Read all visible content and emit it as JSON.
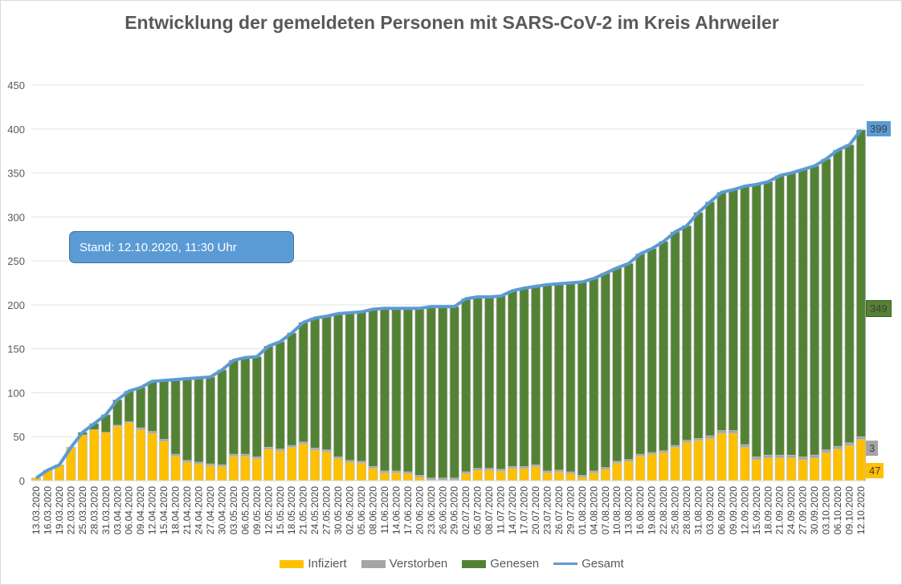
{
  "chart_data": {
    "type": "bar",
    "stacked": true,
    "title": "Entwicklung der gemeldeten Personen mit SARS-CoV-2 im Kreis Ahrweiler",
    "annotation": "Stand: 12.10.2020, 11:30 Uhr",
    "ylim": [
      0,
      450
    ],
    "yticks": [
      0,
      50,
      100,
      150,
      200,
      250,
      300,
      350,
      400,
      450
    ],
    "grid": true,
    "legend_position": "bottom",
    "categories": [
      "13.03.2020",
      "16.03.2020",
      "19.03.2020",
      "22.03.2020",
      "25.03.2020",
      "28.03.2020",
      "31.03.2020",
      "03.04.2020",
      "06.04.2020",
      "09.04.2020",
      "12.04.2020",
      "15.04.2020",
      "18.04.2020",
      "21.04.2020",
      "24.04.2020",
      "27.04.2020",
      "30.04.2020",
      "03.05.2020",
      "06.05.2020",
      "09.05.2020",
      "12.05.2020",
      "15.05.2020",
      "18.05.2020",
      "21.05.2020",
      "24.05.2020",
      "27.05.2020",
      "30.05.2020",
      "02.06.2020",
      "05.06.2020",
      "08.06.2020",
      "11.06.2020",
      "14.06.2020",
      "17.06.2020",
      "20.06.2020",
      "23.06.2020",
      "26.06.2020",
      "29.06.2020",
      "02.07.2020",
      "05.07.2020",
      "08.07.2020",
      "11.07.2020",
      "14.07.2020",
      "17.07.2020",
      "20.07.2020",
      "23.07.2020",
      "26.07.2020",
      "29.07.2020",
      "01.08.2020",
      "04.08.2020",
      "07.08.2020",
      "10.08.2020",
      "13.08.2020",
      "16.08.2020",
      "19.08.2020",
      "22.08.2020",
      "25.08.2020",
      "28.08.2020",
      "31.08.2020",
      "03.09.2020",
      "06.09.2020",
      "09.09.2020",
      "12.09.2020",
      "15.09.2020",
      "18.09.2020",
      "21.09.2020",
      "24.09.2020",
      "27.09.2020",
      "30.09.2020",
      "03.10.2020",
      "06.10.2020",
      "09.10.2020",
      "12.10.2020"
    ],
    "series": [
      {
        "name": "Infiziert",
        "type": "bar",
        "color": "#ffc000",
        "values": [
          3,
          12,
          18,
          38,
          52,
          58,
          55,
          62,
          66,
          58,
          54,
          45,
          28,
          21,
          19,
          17,
          16,
          28,
          28,
          25,
          36,
          34,
          38,
          42,
          35,
          33,
          25,
          21,
          20,
          14,
          9,
          9,
          8,
          4,
          1,
          1,
          1,
          8,
          12,
          12,
          11,
          14,
          14,
          16,
          9,
          10,
          8,
          4,
          9,
          13,
          20,
          22,
          28,
          30,
          32,
          38,
          44,
          46,
          48,
          54,
          54,
          38,
          24,
          26,
          26,
          26,
          24,
          26,
          32,
          36,
          40,
          47
        ]
      },
      {
        "name": "Verstorben",
        "type": "bar",
        "color": "#a5a5a5",
        "values": [
          0,
          0,
          0,
          0,
          0,
          0,
          0,
          1,
          1,
          2,
          2,
          2,
          2,
          2,
          2,
          2,
          2,
          2,
          2,
          2,
          2,
          2,
          2,
          2,
          2,
          2,
          2,
          2,
          2,
          2,
          2,
          2,
          2,
          2,
          2,
          2,
          2,
          2,
          2,
          2,
          2,
          2,
          2,
          2,
          2,
          2,
          2,
          2,
          2,
          2,
          2,
          2,
          2,
          2,
          2,
          2,
          2,
          2,
          3,
          3,
          3,
          3,
          3,
          3,
          3,
          3,
          3,
          3,
          3,
          3,
          3,
          3
        ]
      },
      {
        "name": "Genesen",
        "type": "bar",
        "color": "#548235",
        "values": [
          0,
          0,
          0,
          0,
          3,
          7,
          20,
          29,
          35,
          46,
          57,
          67,
          85,
          93,
          96,
          99,
          108,
          107,
          110,
          114,
          115,
          122,
          128,
          136,
          148,
          152,
          163,
          168,
          170,
          179,
          185,
          185,
          186,
          190,
          195,
          195,
          195,
          197,
          195,
          195,
          197,
          200,
          203,
          203,
          212,
          212,
          215,
          220,
          219,
          221,
          220,
          223,
          228,
          232,
          238,
          243,
          244,
          257,
          266,
          271,
          274,
          294,
          310,
          311,
          318,
          321,
          327,
          329,
          331,
          337,
          339,
          349
        ]
      },
      {
        "name": "Gesamt",
        "type": "line",
        "color": "#5b9bd5",
        "values": [
          3,
          12,
          18,
          38,
          55,
          65,
          75,
          92,
          102,
          106,
          113,
          114,
          115,
          116,
          117,
          118,
          126,
          137,
          140,
          141,
          153,
          158,
          168,
          180,
          185,
          187,
          190,
          191,
          192,
          195,
          196,
          196,
          196,
          196,
          198,
          198,
          198,
          207,
          209,
          209,
          210,
          216,
          219,
          221,
          223,
          224,
          225,
          226,
          230,
          236,
          242,
          247,
          258,
          264,
          272,
          283,
          290,
          305,
          317,
          328,
          331,
          335,
          337,
          340,
          347,
          350,
          354,
          358,
          366,
          376,
          382,
          399
        ]
      }
    ],
    "end_labels": {
      "Gesamt": "399",
      "Genesen": "349",
      "Verstorben": "3",
      "Infiziert": "47"
    }
  }
}
